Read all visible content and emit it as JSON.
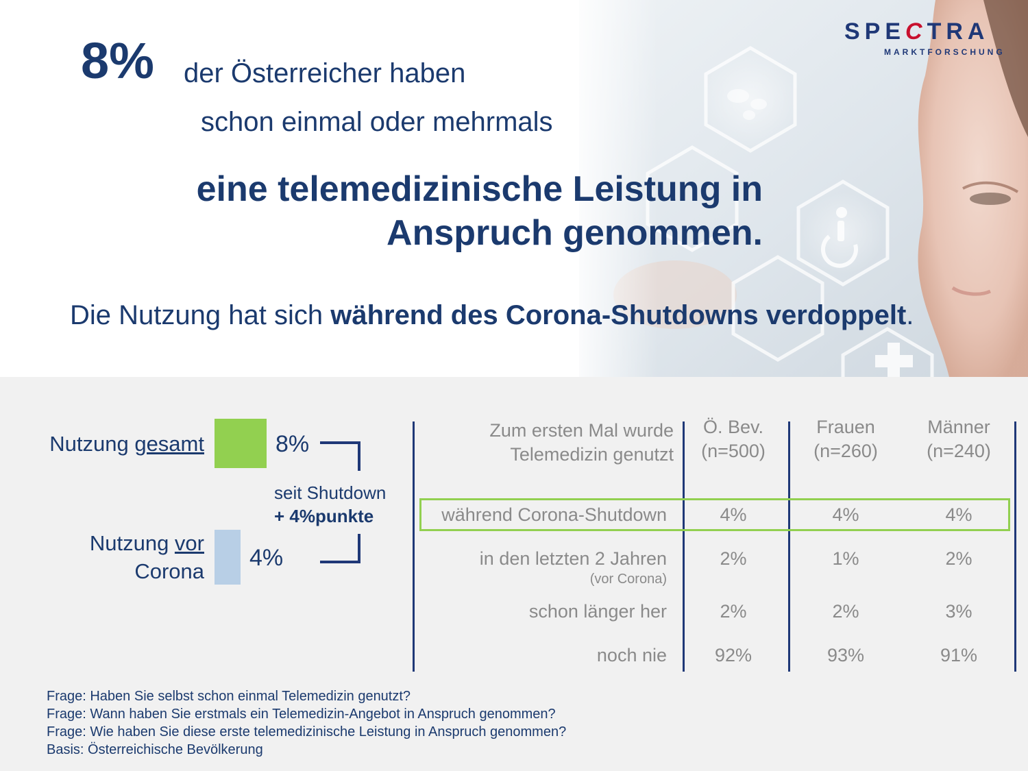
{
  "logo": {
    "word_a": "SPE",
    "word_t": "C",
    "word_b": "TRA",
    "sub": "MARKTFORSCHUNG"
  },
  "hero": {
    "big_pct": "8%",
    "line1": "der Österreicher haben",
    "line2": "schon einmal oder mehrmals",
    "headline_1": "eine telemedizinische Leistung in",
    "headline_2": "Anspruch genommen.",
    "sub_plain": "Die Nutzung hat sich ",
    "sub_bold": "während des Corona-Shutdowns verdoppelt",
    "sub_end": "."
  },
  "bars": {
    "total_label_a": "Nutzung ",
    "total_label_u": "gesamt",
    "before_label_a": "Nutzung ",
    "before_label_u": "vor",
    "before_label_b": "Corona",
    "shutdown_1": "seit Shutdown",
    "shutdown_2": "+ 4%punkte"
  },
  "table": {
    "row_header_1": "Zum ersten Mal wurde",
    "row_header_2": "Telemedizin genutzt",
    "columns": [
      {
        "name": "Ö. Bev.",
        "n": "(n=500)"
      },
      {
        "name": "Frauen",
        "n": "(n=260)"
      },
      {
        "name": "Männer",
        "n": "(n=240)"
      }
    ],
    "rows": [
      {
        "label": "während Corona-Shutdown",
        "sub": "",
        "values": [
          "4%",
          "4%",
          "4%"
        ]
      },
      {
        "label": "in den letzten 2 Jahren",
        "sub": "(vor Corona)",
        "values": [
          "2%",
          "1%",
          "2%"
        ]
      },
      {
        "label": "schon länger her",
        "sub": "",
        "values": [
          "2%",
          "2%",
          "3%"
        ]
      },
      {
        "label": "noch nie",
        "sub": "",
        "values": [
          "92%",
          "93%",
          "91%"
        ]
      }
    ]
  },
  "footnotes": [
    "Frage: Haben Sie selbst schon einmal Telemedizin genutzt?",
    "Frage: Wann haben Sie erstmals ein Telemedizin-Angebot in Anspruch genommen?",
    "Frage: Wie haben Sie diese erste telemedizinische Leistung  in Anspruch genommen?",
    "Basis: Österreichische Bevölkerung"
  ],
  "chart_data": {
    "type": "bar",
    "categories": [
      "Nutzung gesamt",
      "Nutzung vor Corona"
    ],
    "values": [
      8,
      4
    ],
    "value_labels": [
      "8%",
      "4%"
    ],
    "unit": "%",
    "colors": [
      "#92d050",
      "#b8cfe6"
    ],
    "annotation": "seit Shutdown + 4%punkte"
  },
  "colors": {
    "navy": "#1b3a6e",
    "green": "#92d050",
    "lightblue": "#b8cfe6",
    "grey_text": "#8a8a8a",
    "panel": "#f1f1f1",
    "logo_red": "#c8102e"
  }
}
